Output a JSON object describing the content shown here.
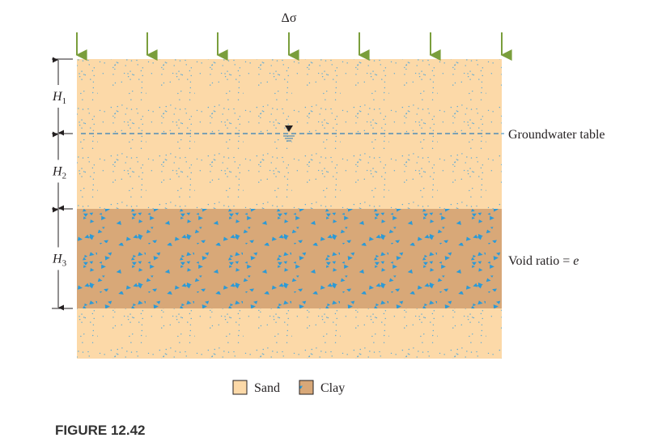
{
  "load": {
    "symbol": "Δσ"
  },
  "layers": [
    {
      "symbol": "H",
      "subscript": "1"
    },
    {
      "symbol": "H",
      "subscript": "2"
    },
    {
      "symbol": "H",
      "subscript": "3"
    }
  ],
  "groundwater_label": "Groundwater table",
  "clay_label": {
    "text": "Void ratio =",
    "symbol": "e"
  },
  "legend": [
    "Sand",
    "Clay"
  ],
  "caption": "FIGURE 12.42"
}
